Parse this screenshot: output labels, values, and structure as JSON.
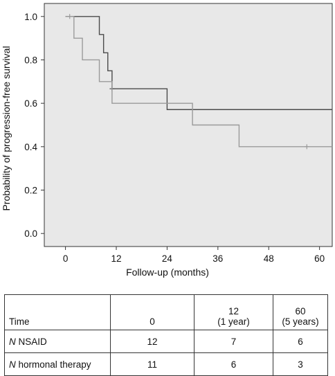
{
  "chart_data": {
    "type": "line",
    "xlabel": "Follow-up (months)",
    "ylabel": "Probability of progression-free survival",
    "xlim": [
      -5,
      63
    ],
    "ylim": [
      -0.06,
      1.06
    ],
    "x_ticks": [
      0,
      12,
      24,
      36,
      48,
      60
    ],
    "y_ticks": [
      0.0,
      0.2,
      0.4,
      0.6,
      0.8,
      1.0
    ],
    "y_tick_labels": [
      "0.0",
      "0.2",
      "0.4",
      "0.6",
      "0.8",
      "1.0"
    ],
    "grid": false,
    "colors": {
      "plot_bg": "#e8e8e8",
      "series_dark": "#4a4a4a",
      "series_light": "#9a9a9a"
    },
    "series": [
      {
        "color": "#4a4a4a",
        "steps": [
          [
            0,
            1.0
          ],
          [
            8,
            0.917
          ],
          [
            9,
            0.833
          ],
          [
            10,
            0.75
          ],
          [
            11,
            0.667
          ],
          [
            24,
            0.571
          ],
          [
            63,
            0.571
          ]
        ],
        "censored": [
          [
            11,
            0.667
          ]
        ]
      },
      {
        "color": "#9a9a9a",
        "steps": [
          [
            0,
            1.0
          ],
          [
            2,
            0.9
          ],
          [
            4,
            0.8
          ],
          [
            8,
            0.7
          ],
          [
            11,
            0.6
          ],
          [
            30,
            0.5
          ],
          [
            41,
            0.4
          ],
          [
            63,
            0.4
          ]
        ],
        "censored": [
          [
            1,
            1.0
          ],
          [
            57,
            0.4
          ]
        ]
      }
    ]
  },
  "risk_table": {
    "header": {
      "time_label": "Time",
      "col0": "0",
      "col1_line1": "12",
      "col1_line2": "(1 year)",
      "col2_line1": "60",
      "col2_line2": "(5 years)"
    },
    "rows": [
      {
        "prefix": "N",
        "label": " NSAID",
        "values": [
          "12",
          "7",
          "6"
        ]
      },
      {
        "prefix": "N",
        "label": " hormonal therapy",
        "values": [
          "11",
          "6",
          "3"
        ]
      }
    ]
  }
}
